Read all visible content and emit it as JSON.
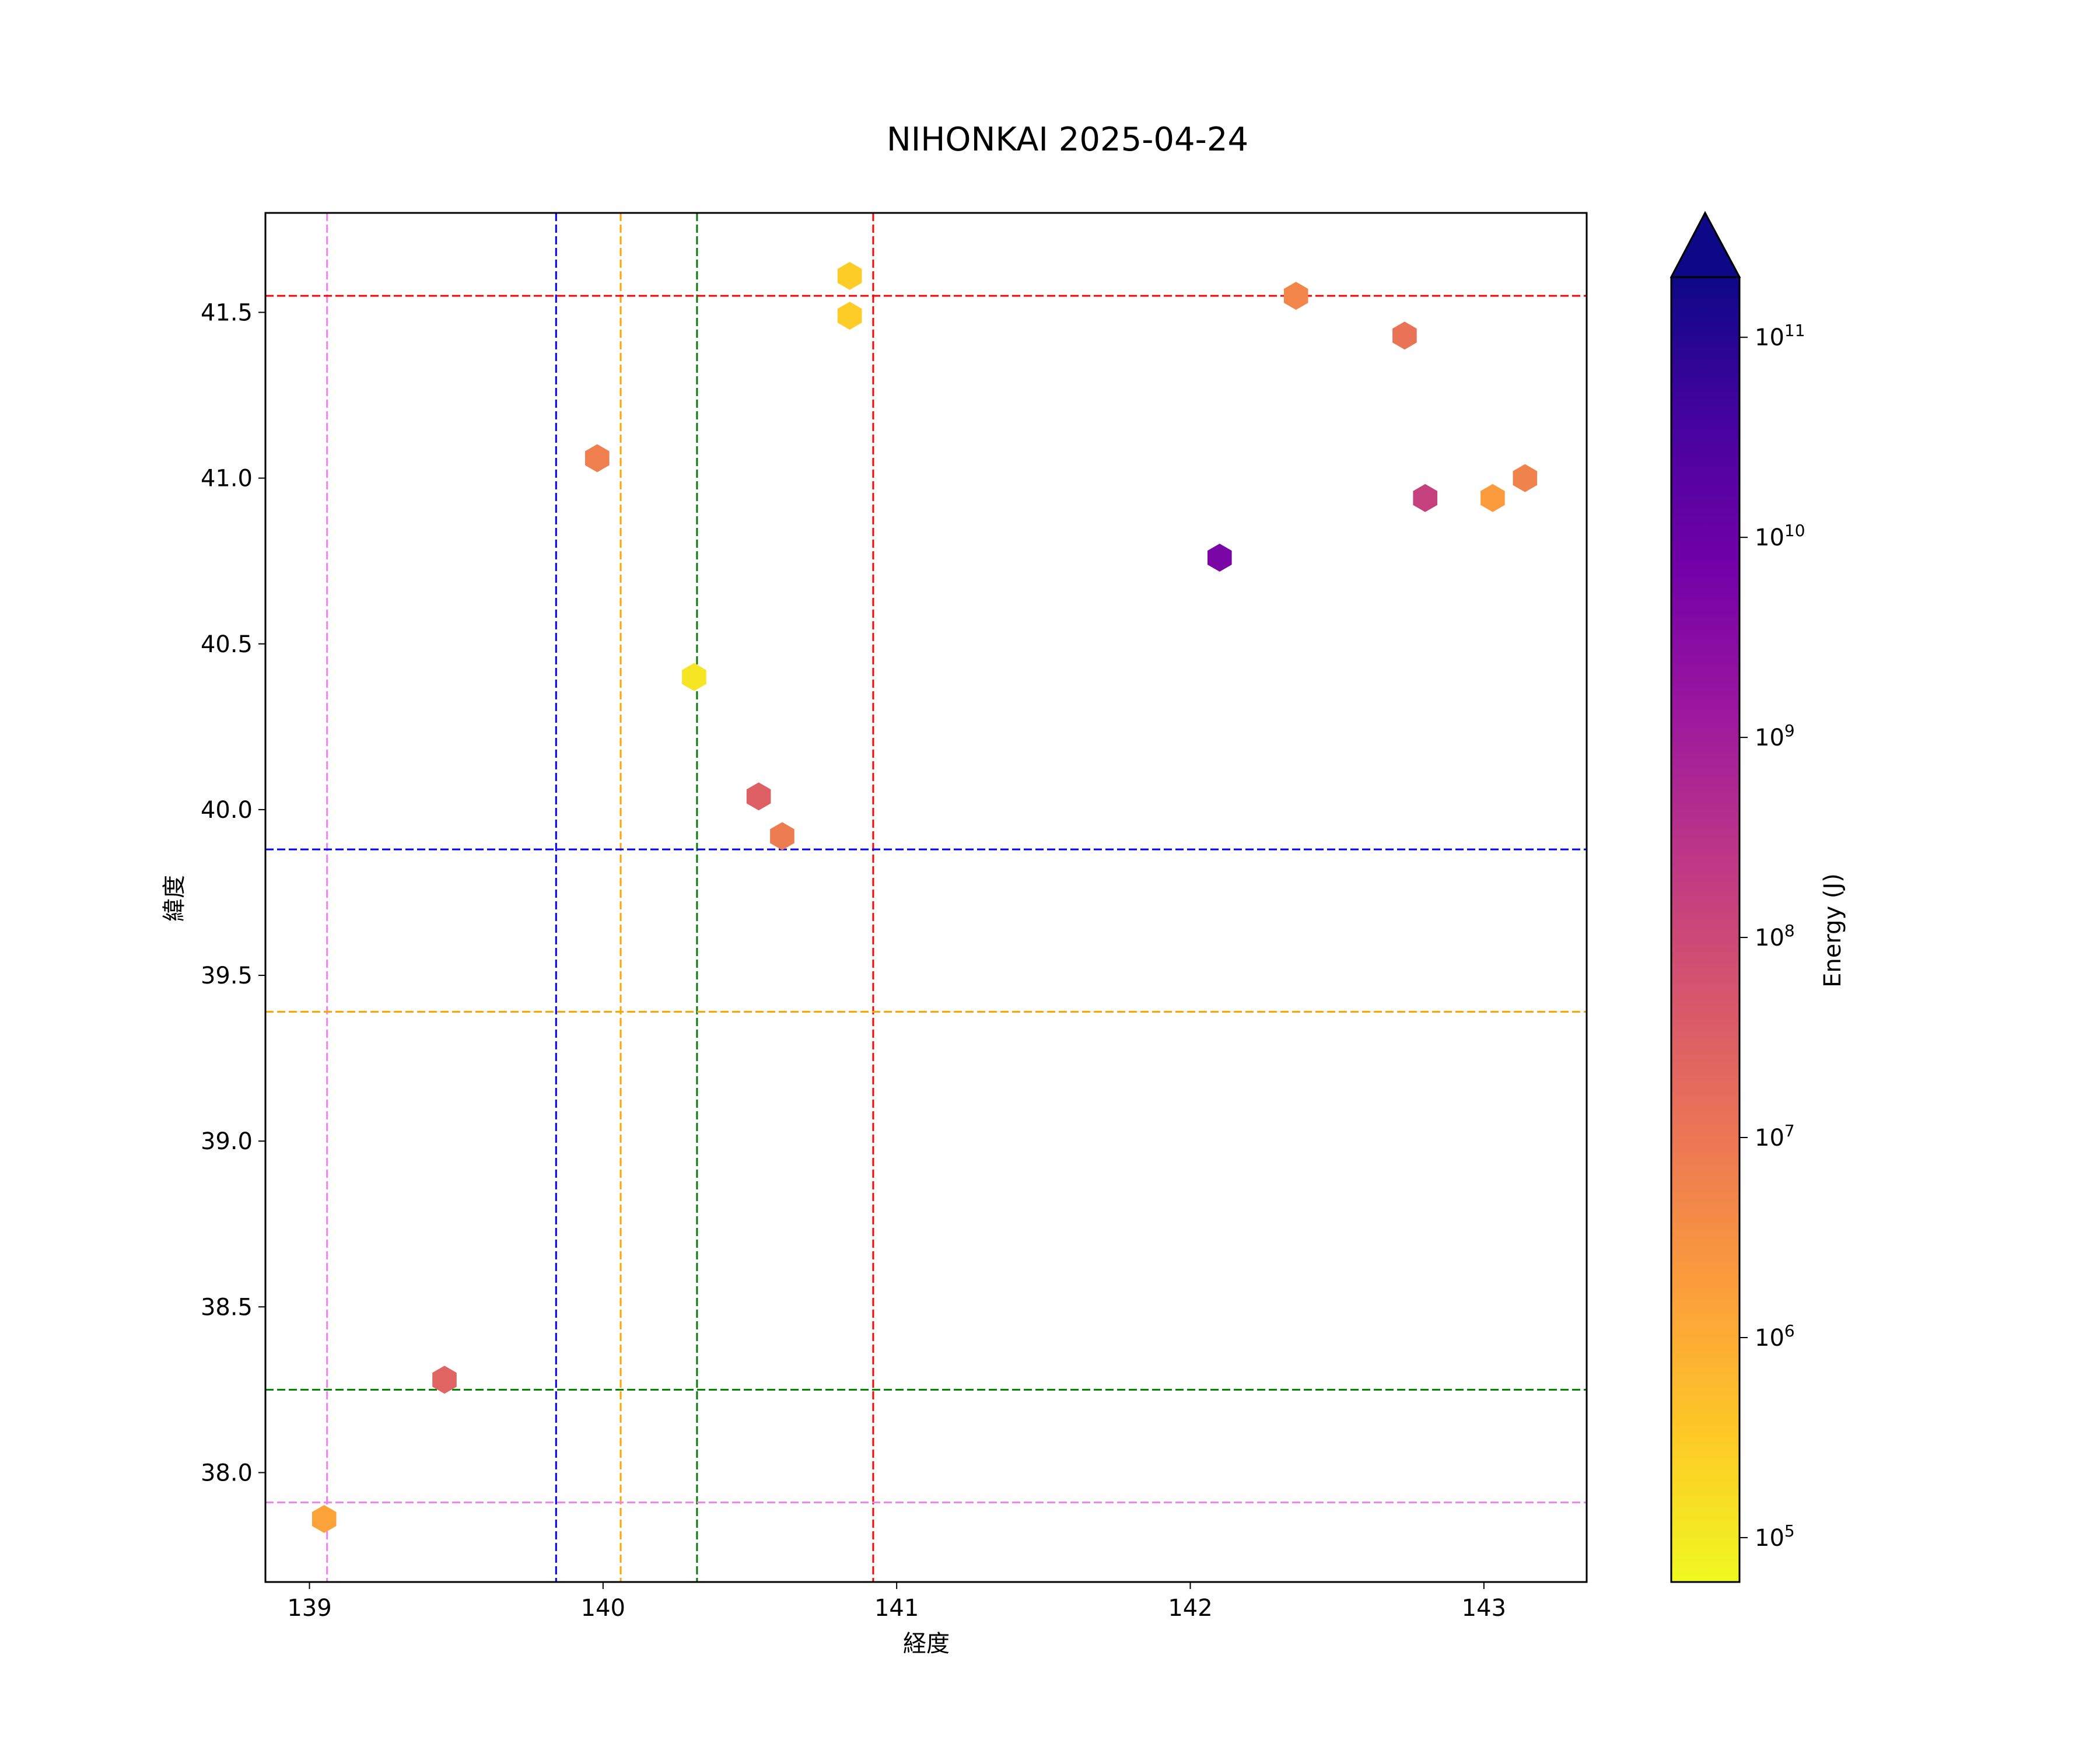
{
  "chart_data": {
    "type": "scatter",
    "marker": "hexagon",
    "title": "NIHONKAI 2025-04-24",
    "xlabel": "経度",
    "ylabel": "緯度",
    "xlim": [
      138.85,
      143.35
    ],
    "ylim": [
      37.67,
      41.8
    ],
    "xticks": [
      139,
      140,
      141,
      142,
      143
    ],
    "yticks": [
      38.0,
      38.5,
      39.0,
      39.5,
      40.0,
      40.5,
      41.0,
      41.5
    ],
    "xtick_labels": [
      "139",
      "140",
      "141",
      "142",
      "143"
    ],
    "ytick_labels": [
      "38.0",
      "38.5",
      "39.0",
      "39.5",
      "40.0",
      "40.5",
      "41.0",
      "41.5"
    ],
    "grid": false,
    "reference_lines": [
      {
        "orientation": "vertical",
        "x": 139.06,
        "color": "#ee82ee"
      },
      {
        "orientation": "vertical",
        "x": 139.84,
        "color": "#0000ff"
      },
      {
        "orientation": "vertical",
        "x": 140.06,
        "color": "#ffa500"
      },
      {
        "orientation": "vertical",
        "x": 140.32,
        "color": "#008000"
      },
      {
        "orientation": "vertical",
        "x": 140.92,
        "color": "#ff0000"
      },
      {
        "orientation": "horizontal",
        "y": 41.55,
        "color": "#ff0000"
      },
      {
        "orientation": "horizontal",
        "y": 39.88,
        "color": "#0000ff"
      },
      {
        "orientation": "horizontal",
        "y": 39.39,
        "color": "#ffa500"
      },
      {
        "orientation": "horizontal",
        "y": 38.25,
        "color": "#008000"
      },
      {
        "orientation": "horizontal",
        "y": 37.91,
        "color": "#ee82ee"
      }
    ],
    "points": [
      {
        "x": 139.05,
        "y": 37.86,
        "energy": 1500000.0
      },
      {
        "x": 139.46,
        "y": 38.28,
        "energy": 25000000.0
      },
      {
        "x": 139.98,
        "y": 41.06,
        "energy": 7000000.0
      },
      {
        "x": 140.31,
        "y": 40.4,
        "energy": 120000.0
      },
      {
        "x": 140.53,
        "y": 40.04,
        "energy": 30000000.0
      },
      {
        "x": 140.61,
        "y": 39.92,
        "energy": 8000000.0
      },
      {
        "x": 140.84,
        "y": 41.61,
        "energy": 300000.0
      },
      {
        "x": 140.84,
        "y": 41.49,
        "energy": 300000.0
      },
      {
        "x": 142.1,
        "y": 40.76,
        "energy": 5000000000.0
      },
      {
        "x": 142.36,
        "y": 41.55,
        "energy": 5000000.0
      },
      {
        "x": 142.73,
        "y": 41.43,
        "energy": 12000000.0
      },
      {
        "x": 142.8,
        "y": 40.94,
        "energy": 150000000.0
      },
      {
        "x": 143.03,
        "y": 40.94,
        "energy": 2000000.0
      },
      {
        "x": 143.14,
        "y": 41.0,
        "energy": 6000000.0
      }
    ],
    "colorbar": {
      "label": "Energy (J)",
      "colormap": "plasma_r",
      "scale": "log",
      "range": [
        60000.0,
        200000000000.0
      ],
      "extend": "max",
      "ticks": [
        100000.0,
        1000000.0,
        10000000.0,
        100000000.0,
        1000000000.0,
        10000000000.0,
        100000000000.0
      ],
      "tick_base": "10",
      "tick_exponents": [
        "5",
        "6",
        "7",
        "8",
        "9",
        "10",
        "11"
      ],
      "colors": [
        "#f0f921",
        "#fdca26",
        "#fb9f3a",
        "#ed7953",
        "#d8576b",
        "#bd3786",
        "#9c179e",
        "#7201a8",
        "#46039f",
        "#0d0887"
      ]
    }
  }
}
